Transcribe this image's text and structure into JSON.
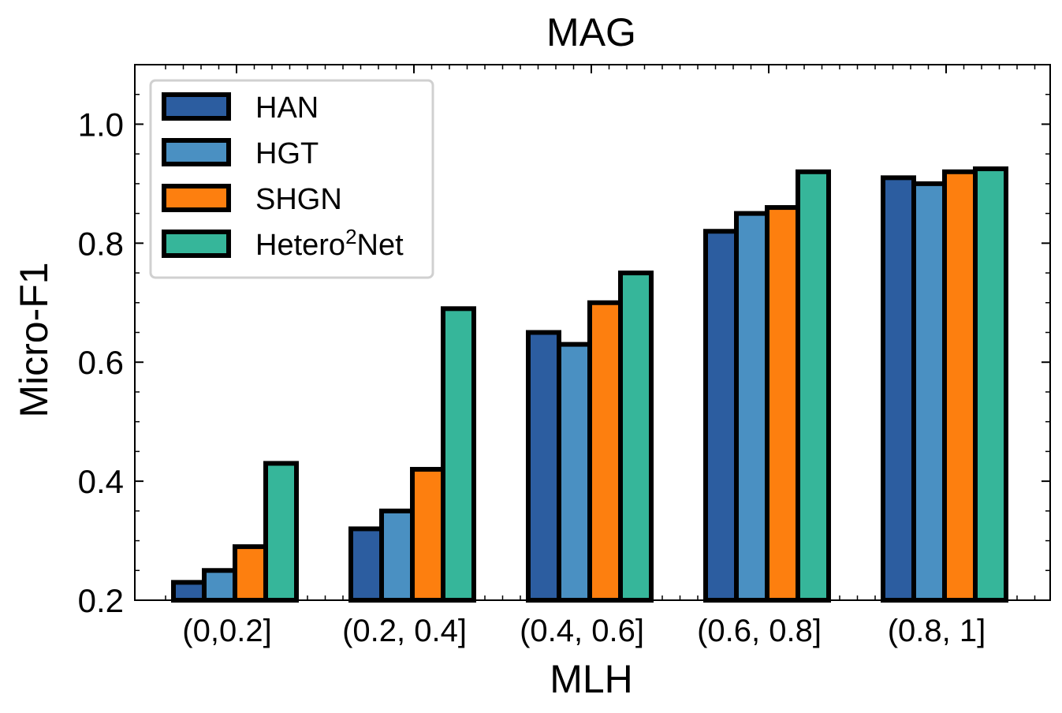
{
  "chart_data": {
    "type": "bar",
    "title": "MAG",
    "xlabel": "MLH",
    "ylabel": "Micro-F1",
    "categories": [
      "(0,0.2]",
      "(0.2, 0.4]",
      "(0.4, 0.6]",
      "(0.6, 0.8]",
      "(0.8, 1]"
    ],
    "series": [
      {
        "name": "HAN",
        "legend_base": "HAN",
        "legend_sup": "",
        "legend_tail": "",
        "color": "#2c5da0",
        "values": [
          0.23,
          0.32,
          0.65,
          0.82,
          0.91
        ]
      },
      {
        "name": "HGT",
        "legend_base": "HGT",
        "legend_sup": "",
        "legend_tail": "",
        "color": "#4a90c2",
        "values": [
          0.25,
          0.35,
          0.63,
          0.85,
          0.9
        ]
      },
      {
        "name": "SHGN",
        "legend_base": "SHGN",
        "legend_sup": "",
        "legend_tail": "",
        "color": "#fd7f0f",
        "values": [
          0.29,
          0.42,
          0.7,
          0.86,
          0.92
        ]
      },
      {
        "name": "Hetero2Net",
        "legend_base": "Hetero",
        "legend_sup": "2",
        "legend_tail": "Net",
        "color": "#36b69a",
        "values": [
          0.43,
          0.69,
          0.75,
          0.92,
          0.925
        ]
      }
    ],
    "ylim": [
      0.2,
      1.1
    ],
    "yticks": [
      0.2,
      0.4,
      0.6,
      0.8,
      1.0
    ],
    "ytick_labels": [
      "0.2",
      "0.4",
      "0.6",
      "0.8",
      "1.0"
    ],
    "yminor_step": 0.05,
    "legend_position": "top-left",
    "grid": false
  }
}
